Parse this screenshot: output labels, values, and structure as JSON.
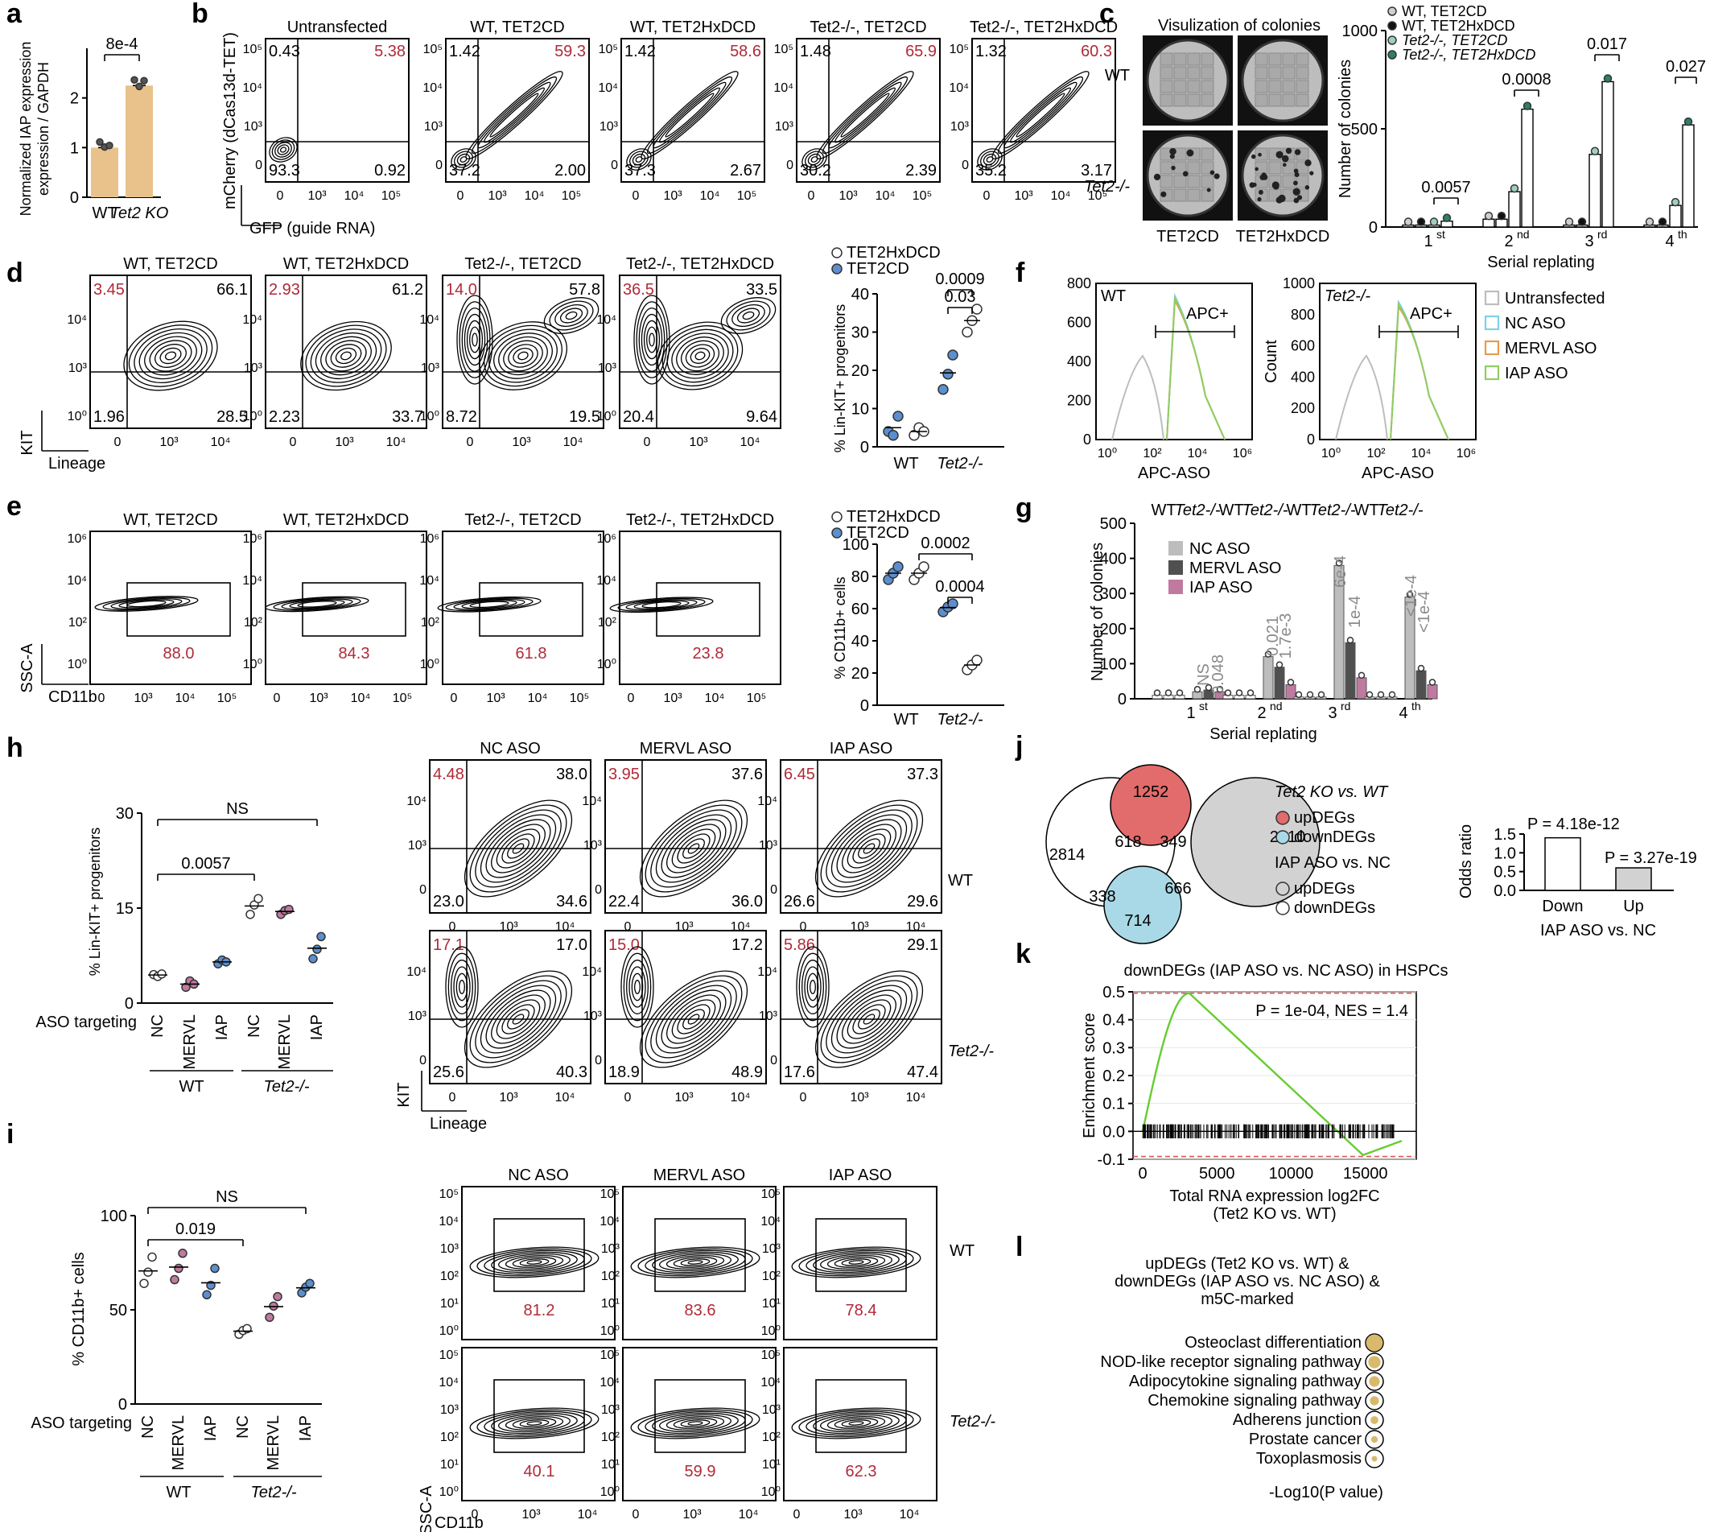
{
  "panel_letters": [
    "a",
    "b",
    "c",
    "d",
    "e",
    "f",
    "g",
    "h",
    "i",
    "j",
    "k",
    "l"
  ],
  "colors": {
    "tan": "#e8c28a",
    "blue": "#5b8fcf",
    "teal": "#2f7d6b",
    "lightgrey": "#bdbdbd",
    "pink": "#c07aa0",
    "darkgrey": "#505050",
    "red_text": "#b02a37",
    "venn_red": "#e26b6b",
    "venn_blue": "#a9d9e6",
    "venn_grey": "#d2d2d2",
    "gsea_line": "#66cc33",
    "dot_fill": "#d9b96b"
  },
  "a": {
    "ylabel": "Normalized IAP expression / GAPDH",
    "pvalue": "8e-4",
    "categories": [
      "WT",
      "Tet2 KO"
    ],
    "values": [
      1.0,
      2.25
    ],
    "yticks": [
      "0",
      "1",
      "2"
    ]
  },
  "b": {
    "ylabel": "mCherry (dCas13d-TET)",
    "xlabel": "GFP (guide RNA)",
    "plots": [
      {
        "title": "Untransfected",
        "ul": "0.43",
        "ur": "5.38",
        "ll": "93.3",
        "lr": "0.92"
      },
      {
        "title": "WT, TET2CD",
        "ul": "1.42",
        "ur": "59.3",
        "ll": "37.2",
        "lr": "2.00"
      },
      {
        "title": "WT, TET2HxDCD",
        "ul": "1.42",
        "ur": "58.6",
        "ll": "37.3",
        "lr": "2.67"
      },
      {
        "title": "Tet2-/-, TET2CD",
        "ul": "1.48",
        "ur": "65.9",
        "ll": "30.2",
        "lr": "2.39"
      },
      {
        "title": "Tet2-/-, TET2HxDCD",
        "ul": "1.32",
        "ur": "60.3",
        "ll": "35.2",
        "lr": "3.17"
      }
    ]
  },
  "c": {
    "img_title": "Visulization of colonies",
    "row_labels": [
      "WT",
      "Tet2-/-"
    ],
    "col_labels": [
      "TET2CD",
      "TET2HxDCD"
    ],
    "legend": [
      "WT, TET2CD",
      "WT, TET2HxDCD",
      "Tet2-/-, TET2CD",
      "Tet2-/-, TET2HxDCD"
    ],
    "ylabel": "Number of colonies",
    "xlabel": "Serial replating",
    "yticks": [
      "0",
      "500",
      "1000"
    ],
    "pvalues": [
      "0.0057",
      "0.0008",
      "0.017",
      "0.027"
    ]
  },
  "d": {
    "ylabel": "KIT",
    "xlabel": "Lineage",
    "plots": [
      {
        "title": "WT, TET2CD",
        "ul": "3.45",
        "ur": "66.1",
        "ll": "1.96",
        "lr": "28.5"
      },
      {
        "title": "WT, TET2HxDCD",
        "ul": "2.93",
        "ur": "61.2",
        "ll": "2.23",
        "lr": "33.7"
      },
      {
        "title": "Tet2-/-, TET2CD",
        "ul": "14.0",
        "ur": "57.8",
        "ll": "8.72",
        "lr": "19.5"
      },
      {
        "title": "Tet2-/-, TET2HxDCD",
        "ul": "36.5",
        "ur": "33.5",
        "ll": "20.4",
        "lr": "9.64"
      }
    ],
    "dot_legend": [
      "TET2HxDCD",
      "TET2CD"
    ],
    "dot_ylabel": "% Lin-KIT+ progenitors",
    "dot_yticks": [
      "0",
      "10",
      "20",
      "30",
      "40"
    ],
    "dot_pvalues": [
      "0.0009",
      "0.03"
    ],
    "dot_groups": [
      "WT",
      "Tet2-/-"
    ]
  },
  "e": {
    "ylabel": "SSC-A",
    "xlabel": "CD11b",
    "plots": [
      {
        "title": "WT, TET2CD",
        "gate": "88.0"
      },
      {
        "title": "WT, TET2HxDCD",
        "gate": "84.3"
      },
      {
        "title": "Tet2-/-, TET2CD",
        "gate": "61.8"
      },
      {
        "title": "Tet2-/-, TET2HxDCD",
        "gate": "23.8"
      }
    ],
    "dot_legend": [
      "TET2HxDCD",
      "TET2CD"
    ],
    "dot_ylabel": "% CD11b+ cells",
    "dot_yticks": [
      "0",
      "20",
      "40",
      "60",
      "80",
      "100"
    ],
    "dot_pvalues": [
      "0.0002",
      "0.0004"
    ],
    "dot_groups": [
      "WT",
      "Tet2-/-"
    ]
  },
  "f": {
    "plots": [
      {
        "title": "WT",
        "ylabel": ""
      },
      {
        "title": "Tet2-/-",
        "ylabel": "Count"
      }
    ],
    "gate_label": "APC+",
    "xlabel": "APC-ASO",
    "yticks_wt": [
      "0",
      "200",
      "400",
      "600",
      "800"
    ],
    "yticks_ko": [
      "0",
      "200",
      "400",
      "600",
      "800",
      "1000"
    ],
    "legend": [
      "Untransfected",
      "NC ASO",
      "MERVL ASO",
      "IAP ASO"
    ],
    "legend_colors": [
      "#bdbdbd",
      "#7fd0e8",
      "#e89a50",
      "#8fce62"
    ]
  },
  "g": {
    "ylabel": "Number of colonies",
    "xlabel": "Serial replating",
    "yticks": [
      "0",
      "100",
      "200",
      "300",
      "400",
      "500"
    ],
    "legend": [
      "NC ASO",
      "MERVL ASO",
      "IAP ASO"
    ],
    "headers": [
      "WT",
      "Tet2-/-",
      "WT",
      "Tet2-/-",
      "WT",
      "Tet2-/-",
      "WT",
      "Tet2-/-"
    ],
    "pvalues": [
      "NS",
      "0.048",
      "0.021",
      "1.7e-3",
      "6e-4",
      "1e-4",
      "<1e-4",
      "<1e-4"
    ]
  },
  "h": {
    "ylabel": "% Lin-KIT+ progenitors",
    "yticks": [
      "0",
      "15",
      "30"
    ],
    "row_label": "ASO targeting",
    "categories": [
      "NC",
      "MERVL",
      "IAP",
      "NC",
      "MERVL",
      "IAP"
    ],
    "groups": [
      "WT",
      "Tet2-/-"
    ],
    "brackets": [
      "NS",
      "0.0057"
    ],
    "flow_titles": [
      "NC ASO",
      "MERVL ASO",
      "IAP ASO"
    ],
    "flow_rows": [
      "WT",
      "Tet2-/-"
    ],
    "ylabel_flow": "KIT",
    "xlabel_flow": "Lineage",
    "quads": [
      {
        "ul": "4.48",
        "ur": "38.0",
        "ll": "23.0",
        "lr": "34.6"
      },
      {
        "ul": "3.95",
        "ur": "37.6",
        "ll": "22.4",
        "lr": "36.0"
      },
      {
        "ul": "6.45",
        "ur": "37.3",
        "ll": "26.6",
        "lr": "29.6"
      },
      {
        "ul": "17.1",
        "ur": "17.0",
        "ll": "25.6",
        "lr": "40.3"
      },
      {
        "ul": "15.0",
        "ur": "17.2",
        "ll": "18.9",
        "lr": "48.9"
      },
      {
        "ul": "5.86",
        "ur": "29.1",
        "ll": "17.6",
        "lr": "47.4"
      }
    ]
  },
  "i": {
    "ylabel": "% CD11b+ cells",
    "yticks": [
      "0",
      "50",
      "100"
    ],
    "row_label": "ASO targeting",
    "categories": [
      "NC",
      "MERVL",
      "IAP",
      "NC",
      "MERVL",
      "IAP"
    ],
    "groups": [
      "WT",
      "Tet2-/-"
    ],
    "brackets": [
      "NS",
      "0.019"
    ],
    "flow_titles": [
      "NC ASO",
      "MERVL ASO",
      "IAP ASO"
    ],
    "flow_rows": [
      "WT",
      "Tet2-/-"
    ],
    "ylabel_flow": "SSC-A",
    "xlabel_flow": "CD11b",
    "gates": [
      "81.2",
      "83.6",
      "78.4",
      "40.1",
      "59.9",
      "62.3"
    ]
  },
  "j": {
    "venn_numbers": [
      "1252",
      "618",
      "349",
      "2814",
      "2910",
      "338",
      "666",
      "714"
    ],
    "legend_title1": "Tet2 KO vs. WT",
    "legend_items1": [
      "upDEGs",
      "downDEGs"
    ],
    "legend_title2": "IAP ASO vs. NC",
    "legend_items2": [
      "upDEGs",
      "downDEGs"
    ],
    "bar_ylabel": "Odds ratio",
    "bar_yticks": [
      "0.0",
      "0.5",
      "1.0",
      "1.5"
    ],
    "bar_categories": [
      "Down",
      "Up"
    ],
    "bar_values": [
      1.4,
      0.6
    ],
    "bar_pvalues": [
      "P = 4.18e-12",
      "P = 3.27e-19"
    ],
    "bar_xlabel": "IAP ASO vs. NC"
  },
  "k": {
    "title": "downDEGs (IAP ASO vs. NC ASO) in HSPCs",
    "ylabel": "Enrichment score",
    "xlabel1": "Total RNA expression log2FC",
    "xlabel2": "(Tet2 KO vs. WT)",
    "yticks": [
      "-0.1",
      "0.0",
      "0.1",
      "0.2",
      "0.3",
      "0.4",
      "0.5"
    ],
    "xticks": [
      "0",
      "5000",
      "10000",
      "15000"
    ],
    "stats": "P = 1e-04, NES = 1.4"
  },
  "l": {
    "title_lines": [
      "upDEGs (Tet2 KO vs. WT) &",
      "downDEGs (IAP ASO vs. NC ASO) &",
      "m5C-marked"
    ],
    "terms": [
      "Osteoclast differentiation",
      "NOD-like receptor signaling pathway",
      "Adipocytokine signaling pathway",
      "Chemokine signaling pathway",
      "Adherens junction",
      "Prostate cancer",
      "Toxoplasmosis"
    ],
    "neglog_p": [
      3.0,
      2.2,
      1.9,
      1.6,
      1.4,
      1.2,
      1.0
    ],
    "xlabel": "-Log10(P value)"
  }
}
